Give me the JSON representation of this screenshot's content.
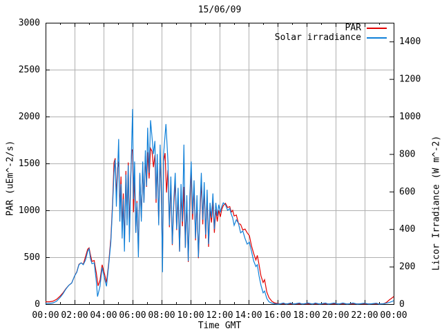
{
  "chart_data": {
    "type": "line",
    "title": "15/06/09",
    "xlabel": "Time GMT",
    "grid": true,
    "legend_position": "top-right-inside",
    "colors": {
      "grid": "#b0b0b0",
      "border": "#000000",
      "background": "#ffffff",
      "text": "#000000"
    },
    "x_axis": {
      "min_hours": 0,
      "max_hours": 24,
      "major_tick_hours": 2,
      "minor_tick_hours": 1,
      "tick_labels": [
        "00:00",
        "02:00",
        "04:00",
        "06:00",
        "08:00",
        "10:00",
        "12:00",
        "14:00",
        "16:00",
        "18:00",
        "20:00",
        "22:00",
        "00:00"
      ]
    },
    "y_left": {
      "label": "PAR (uEm^-2/s)",
      "min": 0,
      "max": 3000,
      "tick_step": 500,
      "tick_labels": [
        "0",
        "500",
        "1000",
        "1500",
        "2000",
        "2500",
        "3000"
      ]
    },
    "y_right": {
      "label": "Licor Irradiance (W m^-2)",
      "min": 0,
      "max": 1500,
      "tick_step": 200,
      "tick_labels": [
        "0",
        "200",
        "400",
        "600",
        "800",
        "1000",
        "1200",
        "1400"
      ]
    },
    "series": [
      {
        "name": "PAR",
        "axis": "left",
        "color": "#e00000",
        "points": [
          [
            0,
            25
          ],
          [
            0.25,
            25
          ],
          [
            0.5,
            30
          ],
          [
            0.75,
            50
          ],
          [
            1.0,
            85
          ],
          [
            1.2,
            120
          ],
          [
            1.4,
            165
          ],
          [
            1.6,
            200
          ],
          [
            1.8,
            225
          ],
          [
            2.0,
            300
          ],
          [
            2.15,
            345
          ],
          [
            2.3,
            425
          ],
          [
            2.45,
            440
          ],
          [
            2.6,
            425
          ],
          [
            2.75,
            505
          ],
          [
            2.9,
            585
          ],
          [
            3.0,
            600
          ],
          [
            3.1,
            520
          ],
          [
            3.2,
            455
          ],
          [
            3.35,
            465
          ],
          [
            3.5,
            330
          ],
          [
            3.62,
            195
          ],
          [
            3.75,
            255
          ],
          [
            3.9,
            420
          ],
          [
            4.05,
            330
          ],
          [
            4.2,
            230
          ],
          [
            4.35,
            430
          ],
          [
            4.5,
            700
          ],
          [
            4.62,
            1080
          ],
          [
            4.72,
            1510
          ],
          [
            4.8,
            1555
          ],
          [
            4.88,
            1150
          ],
          [
            4.96,
            1450
          ],
          [
            5.04,
            1520
          ],
          [
            5.12,
            1010
          ],
          [
            5.2,
            1360
          ],
          [
            5.28,
            820
          ],
          [
            5.36,
            1180
          ],
          [
            5.44,
            640
          ],
          [
            5.54,
            1420
          ],
          [
            5.62,
            900
          ],
          [
            5.7,
            1510
          ],
          [
            5.78,
            740
          ],
          [
            5.86,
            1340
          ],
          [
            5.94,
            1630
          ],
          [
            6.0,
            1650
          ],
          [
            6.06,
            980
          ],
          [
            6.14,
            1380
          ],
          [
            6.22,
            760
          ],
          [
            6.3,
            1100
          ],
          [
            6.4,
            560
          ],
          [
            6.5,
            1380
          ],
          [
            6.6,
            920
          ],
          [
            6.7,
            1460
          ],
          [
            6.78,
            1090
          ],
          [
            6.88,
            1580
          ],
          [
            6.96,
            1250
          ],
          [
            7.04,
            1620
          ],
          [
            7.14,
            1340
          ],
          [
            7.24,
            1660
          ],
          [
            7.34,
            1630
          ],
          [
            7.44,
            1460
          ],
          [
            7.54,
            1590
          ],
          [
            7.62,
            1080
          ],
          [
            7.7,
            1520
          ],
          [
            7.8,
            860
          ],
          [
            7.9,
            1560
          ],
          [
            7.98,
            1180
          ],
          [
            8.06,
            420
          ],
          [
            8.14,
            1520
          ],
          [
            8.24,
            1610
          ],
          [
            8.34,
            1190
          ],
          [
            8.44,
            1430
          ],
          [
            8.54,
            820
          ],
          [
            8.64,
            1280
          ],
          [
            8.74,
            630
          ],
          [
            8.84,
            1050
          ],
          [
            8.94,
            1310
          ],
          [
            9.04,
            790
          ],
          [
            9.14,
            1150
          ],
          [
            9.24,
            560
          ],
          [
            9.34,
            1180
          ],
          [
            9.44,
            830
          ],
          [
            9.54,
            1250
          ],
          [
            9.64,
            600
          ],
          [
            9.74,
            1100
          ],
          [
            9.84,
            450
          ],
          [
            9.94,
            1050
          ],
          [
            10.04,
            1440
          ],
          [
            10.14,
            900
          ],
          [
            10.24,
            1240
          ],
          [
            10.34,
            680
          ],
          [
            10.44,
            1100
          ],
          [
            10.54,
            490
          ],
          [
            10.64,
            940
          ],
          [
            10.74,
            1310
          ],
          [
            10.84,
            850
          ],
          [
            10.94,
            1230
          ],
          [
            11.04,
            700
          ],
          [
            11.14,
            1150
          ],
          [
            11.24,
            610
          ],
          [
            11.34,
            1010
          ],
          [
            11.44,
            870
          ],
          [
            11.54,
            1100
          ],
          [
            11.64,
            760
          ],
          [
            11.74,
            1010
          ],
          [
            11.84,
            880
          ],
          [
            11.94,
            1000
          ],
          [
            12.05,
            930
          ],
          [
            12.15,
            1010
          ],
          [
            12.25,
            1050
          ],
          [
            12.4,
            1075
          ],
          [
            12.55,
            1030
          ],
          [
            12.7,
            1040
          ],
          [
            12.8,
            980
          ],
          [
            12.9,
            1000
          ],
          [
            13.0,
            940
          ],
          [
            13.15,
            950
          ],
          [
            13.3,
            860
          ],
          [
            13.45,
            850
          ],
          [
            13.6,
            790
          ],
          [
            13.75,
            800
          ],
          [
            13.9,
            760
          ],
          [
            14.05,
            730
          ],
          [
            14.2,
            620
          ],
          [
            14.35,
            540
          ],
          [
            14.5,
            470
          ],
          [
            14.6,
            520
          ],
          [
            14.72,
            420
          ],
          [
            14.85,
            300
          ],
          [
            15.0,
            230
          ],
          [
            15.1,
            260
          ],
          [
            15.25,
            130
          ],
          [
            15.4,
            70
          ],
          [
            15.6,
            30
          ],
          [
            15.8,
            12
          ],
          [
            16.1,
            4
          ],
          [
            17,
            3
          ],
          [
            18,
            3
          ],
          [
            19,
            2
          ],
          [
            20,
            3
          ],
          [
            21,
            2
          ],
          [
            22,
            3
          ],
          [
            23,
            2
          ],
          [
            23.3,
            4
          ],
          [
            23.5,
            18
          ],
          [
            23.7,
            45
          ],
          [
            23.85,
            62
          ],
          [
            24,
            80
          ]
        ]
      },
      {
        "name": "Solar irradiance",
        "axis": "right",
        "color": "#0e7fd8",
        "points": [
          [
            0,
            3
          ],
          [
            0.25,
            4
          ],
          [
            0.5,
            6
          ],
          [
            0.75,
            15
          ],
          [
            1.0,
            35
          ],
          [
            1.2,
            55
          ],
          [
            1.4,
            80
          ],
          [
            1.6,
            100
          ],
          [
            1.8,
            112
          ],
          [
            2.0,
            150
          ],
          [
            2.15,
            170
          ],
          [
            2.3,
            210
          ],
          [
            2.45,
            220
          ],
          [
            2.6,
            210
          ],
          [
            2.75,
            235
          ],
          [
            2.9,
            280
          ],
          [
            3.0,
            295
          ],
          [
            3.1,
            240
          ],
          [
            3.2,
            215
          ],
          [
            3.35,
            220
          ],
          [
            3.5,
            120
          ],
          [
            3.58,
            40
          ],
          [
            3.75,
            95
          ],
          [
            3.9,
            195
          ],
          [
            4.05,
            140
          ],
          [
            4.2,
            95
          ],
          [
            4.35,
            205
          ],
          [
            4.5,
            330
          ],
          [
            4.62,
            520
          ],
          [
            4.72,
            700
          ],
          [
            4.8,
            770
          ],
          [
            4.88,
            520
          ],
          [
            4.96,
            700
          ],
          [
            5.04,
            880
          ],
          [
            5.12,
            440
          ],
          [
            5.2,
            640
          ],
          [
            5.28,
            350
          ],
          [
            5.36,
            560
          ],
          [
            5.44,
            280
          ],
          [
            5.54,
            690
          ],
          [
            5.62,
            420
          ],
          [
            5.7,
            740
          ],
          [
            5.78,
            330
          ],
          [
            5.86,
            620
          ],
          [
            5.94,
            860
          ],
          [
            6.0,
            1040
          ],
          [
            6.06,
            560
          ],
          [
            6.14,
            760
          ],
          [
            6.22,
            380
          ],
          [
            6.3,
            540
          ],
          [
            6.4,
            250
          ],
          [
            6.5,
            700
          ],
          [
            6.6,
            440
          ],
          [
            6.7,
            760
          ],
          [
            6.78,
            540
          ],
          [
            6.88,
            820
          ],
          [
            6.96,
            630
          ],
          [
            7.04,
            940
          ],
          [
            7.14,
            700
          ],
          [
            7.24,
            980
          ],
          [
            7.34,
            890
          ],
          [
            7.44,
            800
          ],
          [
            7.54,
            870
          ],
          [
            7.62,
            560
          ],
          [
            7.7,
            800
          ],
          [
            7.8,
            420
          ],
          [
            7.9,
            850
          ],
          [
            7.98,
            600
          ],
          [
            8.06,
            170
          ],
          [
            8.14,
            800
          ],
          [
            8.24,
            900
          ],
          [
            8.3,
            960
          ],
          [
            8.44,
            760
          ],
          [
            8.54,
            420
          ],
          [
            8.64,
            680
          ],
          [
            8.74,
            320
          ],
          [
            8.84,
            550
          ],
          [
            8.94,
            700
          ],
          [
            9.04,
            400
          ],
          [
            9.14,
            620
          ],
          [
            9.24,
            280
          ],
          [
            9.34,
            640
          ],
          [
            9.44,
            440
          ],
          [
            9.54,
            850
          ],
          [
            9.64,
            300
          ],
          [
            9.74,
            580
          ],
          [
            9.84,
            230
          ],
          [
            9.94,
            560
          ],
          [
            10.04,
            760
          ],
          [
            10.14,
            480
          ],
          [
            10.24,
            660
          ],
          [
            10.34,
            350
          ],
          [
            10.44,
            580
          ],
          [
            10.54,
            250
          ],
          [
            10.64,
            500
          ],
          [
            10.74,
            700
          ],
          [
            10.84,
            450
          ],
          [
            10.94,
            650
          ],
          [
            11.04,
            370
          ],
          [
            11.14,
            610
          ],
          [
            11.24,
            320
          ],
          [
            11.34,
            540
          ],
          [
            11.44,
            460
          ],
          [
            11.54,
            590
          ],
          [
            11.64,
            400
          ],
          [
            11.74,
            540
          ],
          [
            11.84,
            470
          ],
          [
            11.94,
            530
          ],
          [
            12.05,
            490
          ],
          [
            12.15,
            520
          ],
          [
            12.25,
            540
          ],
          [
            12.4,
            530
          ],
          [
            12.55,
            500
          ],
          [
            12.7,
            510
          ],
          [
            12.8,
            480
          ],
          [
            12.9,
            460
          ],
          [
            13.0,
            420
          ],
          [
            13.15,
            450
          ],
          [
            13.3,
            430
          ],
          [
            13.45,
            380
          ],
          [
            13.6,
            390
          ],
          [
            13.75,
            350
          ],
          [
            13.9,
            320
          ],
          [
            14.05,
            330
          ],
          [
            14.2,
            280
          ],
          [
            14.35,
            230
          ],
          [
            14.5,
            200
          ],
          [
            14.6,
            210
          ],
          [
            14.72,
            150
          ],
          [
            14.85,
            100
          ],
          [
            15.0,
            60
          ],
          [
            15.1,
            70
          ],
          [
            15.25,
            30
          ],
          [
            15.4,
            12
          ],
          [
            15.6,
            5
          ],
          [
            15.8,
            2
          ],
          [
            16.1,
            0
          ],
          [
            16.4,
            6
          ],
          [
            16.6,
            0
          ],
          [
            16.9,
            6
          ],
          [
            17.1,
            0
          ],
          [
            17.5,
            6
          ],
          [
            17.7,
            0
          ],
          [
            18.1,
            6
          ],
          [
            18.4,
            0
          ],
          [
            18.6,
            6
          ],
          [
            18.9,
            0
          ],
          [
            19.3,
            6
          ],
          [
            19.5,
            0
          ],
          [
            19.9,
            6
          ],
          [
            20.2,
            0
          ],
          [
            20.5,
            6
          ],
          [
            20.8,
            0
          ],
          [
            21.2,
            6
          ],
          [
            21.5,
            0
          ],
          [
            22.0,
            5
          ],
          [
            22.3,
            0
          ],
          [
            22.8,
            5
          ],
          [
            23.0,
            0
          ],
          [
            23.3,
            2
          ],
          [
            23.5,
            5
          ],
          [
            23.7,
            9
          ],
          [
            23.85,
            13
          ],
          [
            24,
            18
          ]
        ]
      }
    ]
  }
}
